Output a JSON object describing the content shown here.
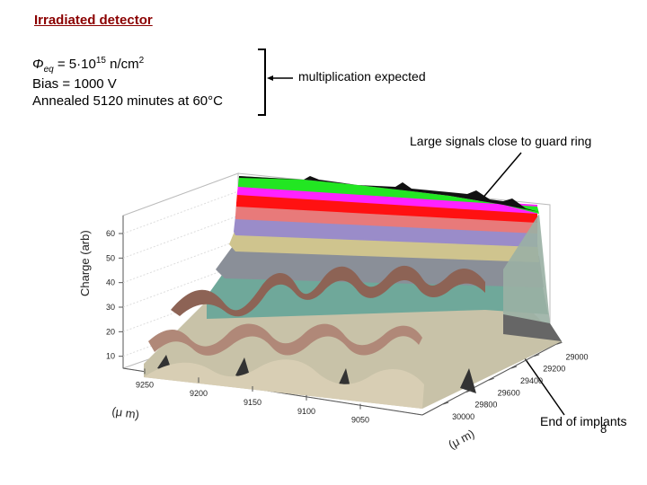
{
  "slide": {
    "title": "Irradiated detector",
    "phi_symbol": "Φ",
    "phi_sub": "eq",
    "phi_eq": " = 5·10",
    "phi_exp": "15",
    "phi_unit": " n/cm",
    "phi_unit_exp": "2",
    "bias": "Bias = 1000 V",
    "anneal": "Annealed 5120 minutes at 60°C",
    "note_multiplication": "multiplication expected",
    "note_large_signals": "Large signals close to guard ring",
    "note_end_implants": "End of implants",
    "page_number": "8"
  },
  "chart_data": {
    "type": "surface3d",
    "title": "",
    "zlabel": "Charge (arb)",
    "zlim": [
      0,
      65
    ],
    "z_ticks": [
      "10",
      "20",
      "30",
      "40",
      "50",
      "60"
    ],
    "xlabel": "(μ m)",
    "x_ticks": [
      "9250",
      "9200",
      "9150",
      "9100",
      "9050"
    ],
    "ylabel": "(μ m)",
    "y_ticks": [
      "29000",
      "29200",
      "29400",
      "29600",
      "29800",
      "30000"
    ],
    "colors": {
      "top_green": "#22e622",
      "magenta": "#ff22ff",
      "red": "#ff1111",
      "salmon": "#e87a7a",
      "purple": "#9a8cc9",
      "tan": "#cfc48e",
      "gray": "#8a8f98",
      "teal": "#6fa89a",
      "brown": "#8d6355",
      "beige": "#d8ceb4",
      "base": "#c8c2a8"
    }
  }
}
